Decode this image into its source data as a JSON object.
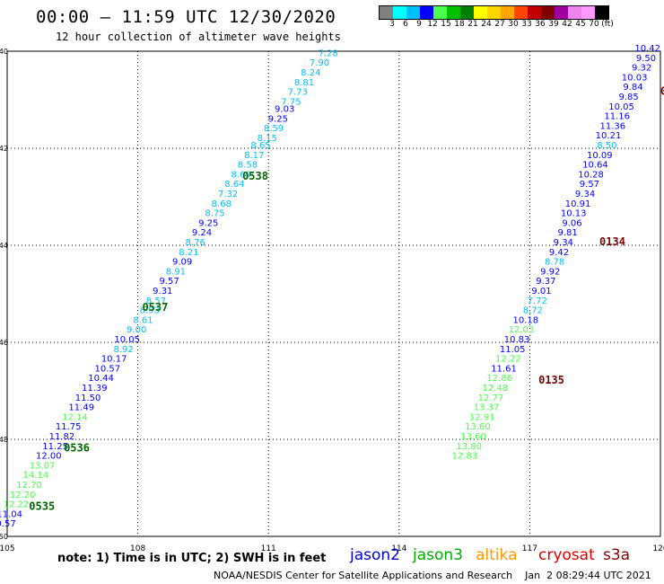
{
  "header": {
    "title": "00:00 – 11:59 UTC 12/30/2020",
    "subtitle": "12 hour collection of altimeter wave heights"
  },
  "legend": {
    "colors": [
      "#808080",
      "#00ffff",
      "#00bfff",
      "#0000ff",
      "#4cff4c",
      "#00c000",
      "#008000",
      "#ffff00",
      "#ffd700",
      "#ffa500",
      "#ff4500",
      "#c00000",
      "#800000",
      "#a000a0",
      "#ee82ee",
      "#ff99ff",
      "#000000"
    ],
    "ticks": [
      "3",
      "6",
      "9",
      "12",
      "15",
      "18",
      "21",
      "24",
      "27",
      "30",
      "33",
      "36",
      "39",
      "42",
      "45",
      "70",
      "(ft)"
    ]
  },
  "footer": {
    "note": "note:  1) Time is in UTC;  2) SWH is in feet",
    "satellites": [
      {
        "name": "jason2",
        "color": "#0000cc"
      },
      {
        "name": "jason3",
        "color": "#00aa00"
      },
      {
        "name": "altika",
        "color": "#ff9900"
      },
      {
        "name": "cryosat",
        "color": "#dd0000"
      },
      {
        "name": "s3a",
        "color": "#880000"
      }
    ],
    "credit": "NOAA/NESDIS Center for Satellite Applications and Research    Jan  2 08:29:44 UTC 2021"
  },
  "chart_data": {
    "type": "scatter",
    "xlim": [
      105,
      120
    ],
    "ylim": [
      -50,
      -40
    ],
    "xticks": [
      "105",
      "108",
      "111",
      "114",
      "117",
      "120"
    ],
    "yticks": [
      "-40",
      "-42",
      "-44",
      "-46",
      "-48",
      "-50"
    ],
    "grid": true,
    "series": [
      {
        "track": "west",
        "points": [
          {
            "x": 112.6,
            "y": -40.1,
            "v": "7.28",
            "c": "#00bfff"
          },
          {
            "x": 112.4,
            "y": -40.3,
            "v": "7.90",
            "c": "#00bfff"
          },
          {
            "x": 112.2,
            "y": -40.5,
            "v": "8.24",
            "c": "#00bfff"
          },
          {
            "x": 112.05,
            "y": -40.7,
            "v": "8.81",
            "c": "#00bfff"
          },
          {
            "x": 111.9,
            "y": -40.9,
            "v": "7.73",
            "c": "#00bfff"
          },
          {
            "x": 111.75,
            "y": -41.1,
            "v": "7.75",
            "c": "#00bfff"
          },
          {
            "x": 111.6,
            "y": -41.25,
            "v": "9.03",
            "c": "#0000ff"
          },
          {
            "x": 111.45,
            "y": -41.45,
            "v": "9.25",
            "c": "#0000ff"
          },
          {
            "x": 111.35,
            "y": -41.65,
            "v": "8.59",
            "c": "#00bfff"
          },
          {
            "x": 111.2,
            "y": -41.85,
            "v": "8.15",
            "c": "#00bfff"
          },
          {
            "x": 111.05,
            "y": -42.0,
            "v": "8.65",
            "c": "#00bfff"
          },
          {
            "x": 110.9,
            "y": -42.2,
            "v": "8.17",
            "c": "#00bfff"
          },
          {
            "x": 110.75,
            "y": -42.4,
            "v": "8.58",
            "c": "#00bfff"
          },
          {
            "x": 110.6,
            "y": -42.6,
            "v": "8.69",
            "c": "#00bfff"
          },
          {
            "x": 110.45,
            "y": -42.8,
            "v": "8.64",
            "c": "#00bfff"
          },
          {
            "x": 110.3,
            "y": -43.0,
            "v": "7.32",
            "c": "#00bfff"
          },
          {
            "x": 110.15,
            "y": -43.2,
            "v": "8.68",
            "c": "#00bfff"
          },
          {
            "x": 110.0,
            "y": -43.4,
            "v": "8.75",
            "c": "#00bfff"
          },
          {
            "x": 109.85,
            "y": -43.6,
            "v": "9.25",
            "c": "#0000ff"
          },
          {
            "x": 109.7,
            "y": -43.8,
            "v": "9.24",
            "c": "#0000ff"
          },
          {
            "x": 109.55,
            "y": -44.0,
            "v": "8.76",
            "c": "#00bfff"
          },
          {
            "x": 109.4,
            "y": -44.2,
            "v": "8.21",
            "c": "#00bfff"
          },
          {
            "x": 109.25,
            "y": -44.4,
            "v": "9.09",
            "c": "#0000ff"
          },
          {
            "x": 109.1,
            "y": -44.6,
            "v": "8.91",
            "c": "#00bfff"
          },
          {
            "x": 108.95,
            "y": -44.8,
            "v": "9.57",
            "c": "#0000ff"
          },
          {
            "x": 108.8,
            "y": -45.0,
            "v": "9.31",
            "c": "#0000ff"
          },
          {
            "x": 108.65,
            "y": -45.2,
            "v": "8.57",
            "c": "#00bfff"
          },
          {
            "x": 108.5,
            "y": -45.4,
            "v": "8.93",
            "c": "#00bfff"
          },
          {
            "x": 108.35,
            "y": -45.6,
            "v": "8.61",
            "c": "#00bfff"
          },
          {
            "x": 108.2,
            "y": -45.8,
            "v": "9.00",
            "c": "#00bfff"
          },
          {
            "x": 108.05,
            "y": -46.0,
            "v": "10.05",
            "c": "#0000ff"
          },
          {
            "x": 107.9,
            "y": -46.2,
            "v": "8.92",
            "c": "#00bfff"
          },
          {
            "x": 107.75,
            "y": -46.4,
            "v": "10.17",
            "c": "#0000ff"
          },
          {
            "x": 107.6,
            "y": -46.6,
            "v": "10.57",
            "c": "#0000ff"
          },
          {
            "x": 107.45,
            "y": -46.8,
            "v": "10.44",
            "c": "#0000ff"
          },
          {
            "x": 107.3,
            "y": -47.0,
            "v": "11.39",
            "c": "#0000ff"
          },
          {
            "x": 107.15,
            "y": -47.2,
            "v": "11.50",
            "c": "#0000ff"
          },
          {
            "x": 107.0,
            "y": -47.4,
            "v": "11.49",
            "c": "#0000ff"
          },
          {
            "x": 106.85,
            "y": -47.6,
            "v": "12.14",
            "c": "#4cff4c"
          },
          {
            "x": 106.7,
            "y": -47.8,
            "v": "11.75",
            "c": "#0000ff"
          },
          {
            "x": 106.55,
            "y": -48.0,
            "v": "11.82",
            "c": "#0000ff"
          },
          {
            "x": 106.4,
            "y": -48.2,
            "v": "11.25",
            "c": "#0000ff"
          },
          {
            "x": 106.25,
            "y": -48.4,
            "v": "12.00",
            "c": "#0000ff"
          },
          {
            "x": 106.1,
            "y": -48.6,
            "v": "13.07",
            "c": "#4cff4c"
          },
          {
            "x": 105.95,
            "y": -48.8,
            "v": "14.14",
            "c": "#4cff4c"
          },
          {
            "x": 105.8,
            "y": -49.0,
            "v": "12.70",
            "c": "#4cff4c"
          },
          {
            "x": 105.65,
            "y": -49.2,
            "v": "12.20",
            "c": "#4cff4c"
          },
          {
            "x": 105.5,
            "y": -49.4,
            "v": "12.22",
            "c": "#4cff4c"
          },
          {
            "x": 105.35,
            "y": -49.6,
            "v": "11.04",
            "c": "#0000ff"
          },
          {
            "x": 105.2,
            "y": -49.8,
            "v": "10.57",
            "c": "#0000ff"
          }
        ]
      },
      {
        "track": "east",
        "points": [
          {
            "x": 120.0,
            "y": -40.0,
            "v": "10.42",
            "c": "#0000ff"
          },
          {
            "x": 119.9,
            "y": -40.2,
            "v": "9.50",
            "c": "#0000ff"
          },
          {
            "x": 119.8,
            "y": -40.4,
            "v": "9.32",
            "c": "#0000ff"
          },
          {
            "x": 119.7,
            "y": -40.6,
            "v": "10.03",
            "c": "#0000ff"
          },
          {
            "x": 119.6,
            "y": -40.8,
            "v": "9.84",
            "c": "#0000ff"
          },
          {
            "x": 119.5,
            "y": -41.0,
            "v": "9.85",
            "c": "#0000ff"
          },
          {
            "x": 119.4,
            "y": -41.2,
            "v": "10.05",
            "c": "#0000ff"
          },
          {
            "x": 119.3,
            "y": -41.4,
            "v": "11.16",
            "c": "#0000ff"
          },
          {
            "x": 119.2,
            "y": -41.6,
            "v": "11.36",
            "c": "#0000ff"
          },
          {
            "x": 119.1,
            "y": -41.8,
            "v": "10.21",
            "c": "#0000ff"
          },
          {
            "x": 119.0,
            "y": -42.0,
            "v": "8.50",
            "c": "#00bfff"
          },
          {
            "x": 118.9,
            "y": -42.2,
            "v": "10.09",
            "c": "#0000ff"
          },
          {
            "x": 118.8,
            "y": -42.4,
            "v": "10.64",
            "c": "#0000ff"
          },
          {
            "x": 118.7,
            "y": -42.6,
            "v": "10.28",
            "c": "#0000ff"
          },
          {
            "x": 118.6,
            "y": -42.8,
            "v": "9.57",
            "c": "#0000ff"
          },
          {
            "x": 118.5,
            "y": -43.0,
            "v": "9.34",
            "c": "#0000ff"
          },
          {
            "x": 118.4,
            "y": -43.2,
            "v": "10.91",
            "c": "#0000ff"
          },
          {
            "x": 118.3,
            "y": -43.4,
            "v": "10.13",
            "c": "#0000ff"
          },
          {
            "x": 118.2,
            "y": -43.6,
            "v": "9.06",
            "c": "#0000ff"
          },
          {
            "x": 118.1,
            "y": -43.8,
            "v": "9.81",
            "c": "#0000ff"
          },
          {
            "x": 118.0,
            "y": -44.0,
            "v": "9.34",
            "c": "#0000ff"
          },
          {
            "x": 117.9,
            "y": -44.2,
            "v": "9.42",
            "c": "#0000ff"
          },
          {
            "x": 117.8,
            "y": -44.4,
            "v": "8.78",
            "c": "#00bfff"
          },
          {
            "x": 117.7,
            "y": -44.6,
            "v": "9.92",
            "c": "#0000ff"
          },
          {
            "x": 117.6,
            "y": -44.8,
            "v": "9.37",
            "c": "#0000ff"
          },
          {
            "x": 117.5,
            "y": -45.0,
            "v": "9.01",
            "c": "#0000ff"
          },
          {
            "x": 117.4,
            "y": -45.2,
            "v": "7.72",
            "c": "#00bfff"
          },
          {
            "x": 117.3,
            "y": -45.4,
            "v": "8.72",
            "c": "#00bfff"
          },
          {
            "x": 117.2,
            "y": -45.6,
            "v": "10.18",
            "c": "#0000ff"
          },
          {
            "x": 117.1,
            "y": -45.8,
            "v": "12.03",
            "c": "#4cff4c"
          },
          {
            "x": 117.0,
            "y": -46.0,
            "v": "10.83",
            "c": "#0000ff"
          },
          {
            "x": 116.9,
            "y": -46.2,
            "v": "11.05",
            "c": "#0000ff"
          },
          {
            "x": 116.8,
            "y": -46.4,
            "v": "12.22",
            "c": "#4cff4c"
          },
          {
            "x": 116.7,
            "y": -46.6,
            "v": "11.61",
            "c": "#0000ff"
          },
          {
            "x": 116.6,
            "y": -46.8,
            "v": "12.86",
            "c": "#4cff4c"
          },
          {
            "x": 116.5,
            "y": -47.0,
            "v": "12.48",
            "c": "#4cff4c"
          },
          {
            "x": 116.4,
            "y": -47.2,
            "v": "12.77",
            "c": "#4cff4c"
          },
          {
            "x": 116.3,
            "y": -47.4,
            "v": "13.37",
            "c": "#4cff4c"
          },
          {
            "x": 116.2,
            "y": -47.6,
            "v": "12.91",
            "c": "#4cff4c"
          },
          {
            "x": 116.1,
            "y": -47.8,
            "v": "13.60",
            "c": "#4cff4c"
          },
          {
            "x": 116.0,
            "y": -48.0,
            "v": "13.60",
            "c": "#4cff4c"
          },
          {
            "x": 115.9,
            "y": -48.2,
            "v": "13.80",
            "c": "#4cff4c"
          },
          {
            "x": 115.8,
            "y": -48.4,
            "v": "12.83",
            "c": "#4cff4c"
          }
        ]
      }
    ],
    "time_labels": [
      {
        "x": 110.4,
        "y": -42.65,
        "t": "0538",
        "c": "#006600"
      },
      {
        "x": 108.1,
        "y": -45.35,
        "t": "0537",
        "c": "#006600"
      },
      {
        "x": 106.3,
        "y": -48.25,
        "t": "0536",
        "c": "#006600"
      },
      {
        "x": 105.5,
        "y": -49.45,
        "t": "0535",
        "c": "#006600"
      },
      {
        "x": 118.6,
        "y": -44.0,
        "t": "0134",
        "c": "#7a0000"
      },
      {
        "x": 117.2,
        "y": -46.85,
        "t": "0135",
        "c": "#7a0000"
      },
      {
        "x": 120.0,
        "y": -40.9,
        "t": "0",
        "c": "#7a0000"
      }
    ]
  }
}
